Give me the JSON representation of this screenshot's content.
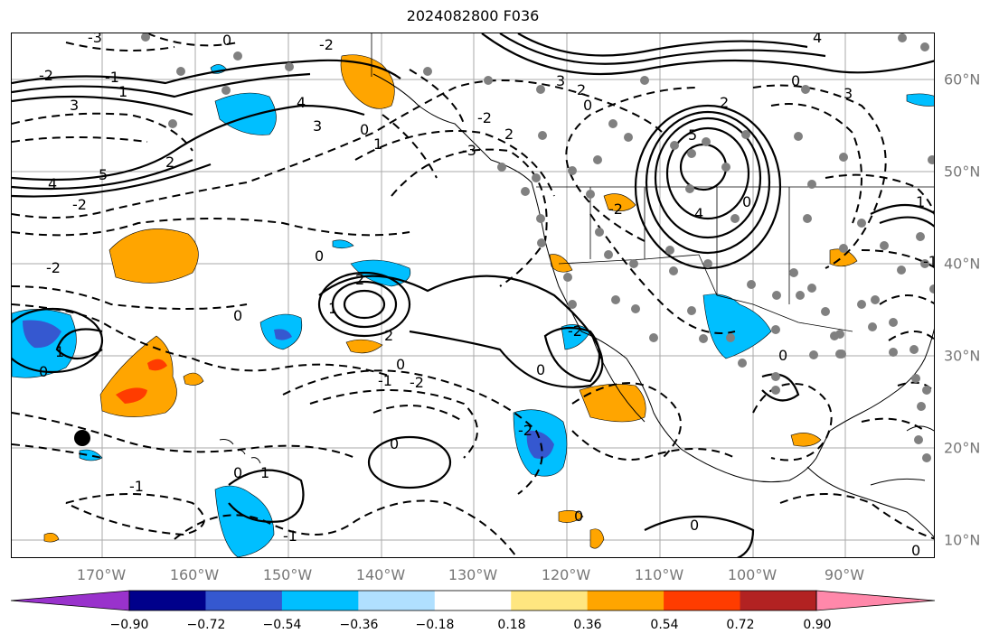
{
  "title": "2024082800 F036",
  "map": {
    "longitude_labels": [
      "170°W",
      "160°W",
      "150°W",
      "140°W",
      "130°W",
      "120°W",
      "110°W",
      "100°W",
      "90°W"
    ],
    "latitude_labels": [
      "60°N",
      "50°N",
      "40°N",
      "30°N",
      "20°N",
      "10°N"
    ],
    "contour_labels": [
      "-3",
      "-2",
      "-1",
      "0",
      "1",
      "2",
      "3",
      "4",
      "5"
    ],
    "colors": {
      "coastline": "#000000",
      "grid": "#888888",
      "stations": "#808080",
      "marker": "#000000"
    }
  },
  "colorbar": {
    "tick_labels": [
      "−0.90",
      "−0.72",
      "−0.54",
      "−0.36",
      "−0.18",
      "0.18",
      "0.36",
      "0.54",
      "0.72",
      "0.90"
    ],
    "colors": [
      "#9932cc",
      "#00008b",
      "#3558d0",
      "#00bfff",
      "#b0e0ff",
      "#ffffff",
      "#ffe680",
      "#ffa500",
      "#ff3c00",
      "#b22222",
      "#ff88aa"
    ]
  }
}
